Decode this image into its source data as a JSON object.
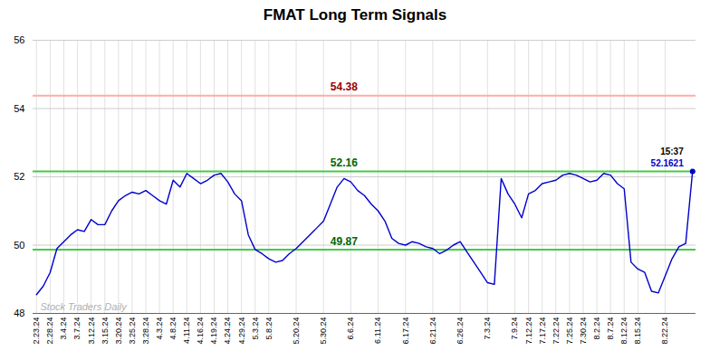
{
  "chart_data": {
    "type": "line",
    "title": "FMAT Long Term Signals",
    "categories": [
      "2.23.24",
      null,
      "2.28.24",
      null,
      "3.4.24",
      null,
      "3.7.24",
      null,
      "3.12.24",
      null,
      "3.15.24",
      null,
      "3.20.24",
      null,
      "3.25.24",
      null,
      "3.28.24",
      null,
      "4.3.24",
      null,
      "4.8.24",
      null,
      "4.11.24",
      null,
      "4.16.24",
      null,
      "4.19.24",
      null,
      "4.24.24",
      null,
      "4.29.24",
      null,
      "5.3.24",
      null,
      "5.8.24",
      null,
      null,
      null,
      "5.20.24",
      null,
      null,
      null,
      "5.30.24",
      null,
      null,
      null,
      "6.6.24",
      null,
      null,
      null,
      "6.11.24",
      null,
      null,
      null,
      "6.17.24",
      null,
      null,
      null,
      "6.21.24",
      null,
      null,
      null,
      "6.26.24",
      null,
      null,
      null,
      "7.3.24",
      null,
      null,
      null,
      "7.9.24",
      null,
      "7.12.24",
      null,
      "7.17.24",
      null,
      "7.22.24",
      null,
      "7.25.24",
      null,
      "7.30.24",
      null,
      "8.2.24",
      null,
      "8.7.24",
      null,
      "8.12.24",
      null,
      "8.15.24",
      null,
      null,
      null,
      "8.22.24",
      null,
      null,
      null,
      null
    ],
    "values": [
      48.55,
      48.8,
      49.2,
      49.9,
      50.1,
      50.3,
      50.45,
      50.4,
      50.75,
      50.6,
      50.6,
      51.0,
      51.3,
      51.45,
      51.55,
      51.5,
      51.6,
      51.45,
      51.3,
      51.2,
      51.9,
      51.7,
      52.1,
      51.95,
      51.8,
      51.9,
      52.05,
      52.1,
      51.85,
      51.5,
      51.3,
      50.3,
      49.87,
      49.75,
      49.6,
      49.5,
      49.55,
      49.75,
      49.9,
      50.1,
      50.3,
      50.5,
      50.7,
      51.2,
      51.7,
      51.95,
      51.85,
      51.6,
      51.45,
      51.2,
      51.0,
      50.7,
      50.2,
      50.05,
      50.0,
      50.1,
      50.05,
      49.95,
      49.9,
      49.75,
      49.85,
      50.0,
      50.1,
      49.8,
      49.5,
      49.2,
      48.9,
      48.85,
      51.95,
      51.5,
      51.2,
      50.8,
      51.5,
      51.6,
      51.8,
      51.85,
      51.9,
      52.05,
      52.1,
      52.05,
      51.95,
      51.85,
      51.9,
      52.1,
      52.05,
      51.8,
      51.65,
      49.5,
      49.3,
      49.2,
      48.65,
      48.6,
      49.1,
      49.6,
      49.95,
      50.05,
      52.1621
    ],
    "color": "#0000cc",
    "ylim": [
      48,
      56
    ],
    "yticks": [
      48,
      50,
      52,
      54,
      56
    ],
    "grid": true,
    "reference_lines": [
      {
        "value": 54.38,
        "label": "54.38",
        "color": "#ffaaaa",
        "label_color": "#990000"
      },
      {
        "value": 52.16,
        "label": "52.16",
        "color": "#44cc44",
        "label_color": "#006600"
      },
      {
        "value": 49.87,
        "label": "49.87",
        "color": "#44cc44",
        "label_color": "#006600"
      }
    ],
    "annotations": [
      {
        "text": "15:37",
        "color": "#000000"
      },
      {
        "text": "52.1621",
        "color": "#0000cc"
      }
    ],
    "watermark": {
      "text": "Stock Traders Daily",
      "color": "#b0b0b0"
    }
  }
}
